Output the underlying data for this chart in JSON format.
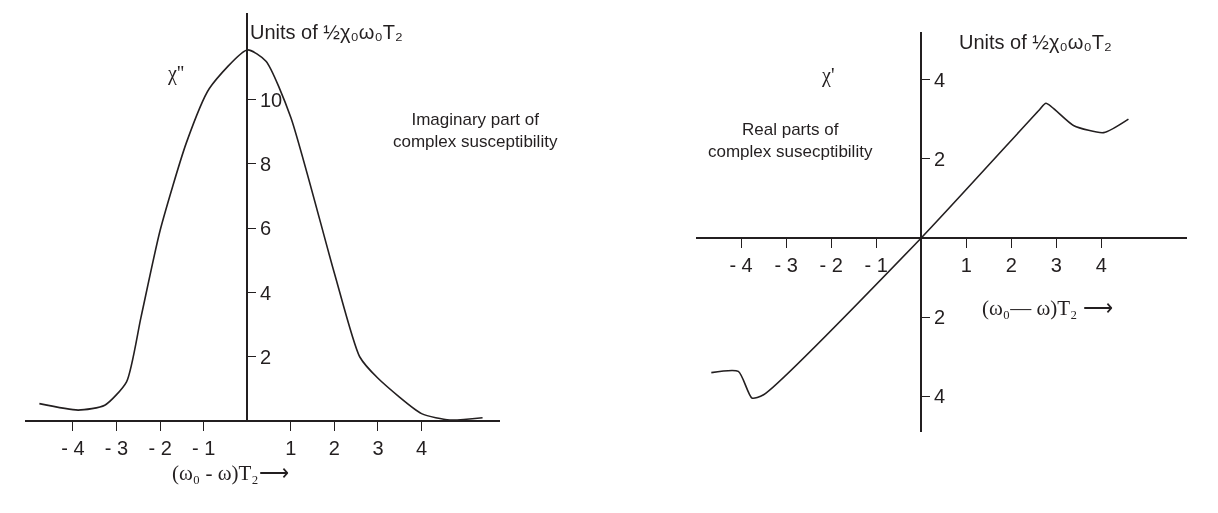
{
  "chart_data": [
    {
      "type": "line",
      "xlabel": "(ω₀ - ω)T₂⟶",
      "ylabel": "χ''",
      "annotations": [
        "Units of ½χ₀ω₀T₂",
        "Imaginary part of\ncomplex susceptibility"
      ],
      "series": [
        {
          "color": "#231f20",
          "x": [
            -4.77,
            -3.88,
            -3.27,
            -2.77,
            -2.44,
            -2.0,
            -1.4,
            -0.87,
            0.0,
            0.43,
            1.0,
            2.0,
            2.58,
            3.0,
            4.0,
            4.65,
            5.4
          ],
          "values": [
            0.54,
            0.34,
            0.49,
            1.22,
            3.22,
            5.93,
            8.65,
            10.35,
            11.55,
            11.2,
            9.45,
            4.6,
            2.0,
            1.33,
            0.23,
            0.03,
            0.1
          ]
        }
      ],
      "xlim": [
        -5.1,
        5.8
      ],
      "ylim": [
        0,
        12.7
      ],
      "xticks": [
        {
          "value": -4,
          "label": "- 4"
        },
        {
          "value": -3,
          "label": "- 3"
        },
        {
          "value": -2,
          "label": "- 2"
        },
        {
          "value": -1,
          "label": "- 1"
        },
        1,
        2,
        3,
        4
      ],
      "yticks": [
        2,
        4,
        6,
        8,
        10
      ]
    },
    {
      "type": "line",
      "xlabel": "(ω₀— ω)T₂ ⟶",
      "ylabel": "χ'",
      "annotations": [
        "Units of ½χ₀ω₀T₂",
        "Real parts of\ncomplex susecptibility"
      ],
      "series": [
        {
          "color": "#231f20",
          "x": [
            -4.66,
            -4.06,
            -3.76,
            -3.5,
            0,
            2.62,
            2.77,
            3.38,
            4.05,
            4.6
          ],
          "values": [
            -3.4,
            -3.37,
            -4.04,
            -3.96,
            0,
            3.23,
            3.4,
            2.84,
            2.66,
            3.0
          ]
        }
      ],
      "xlim": [
        -5.0,
        5.9
      ],
      "ylim": [
        -4.9,
        5.2
      ],
      "xticks": [
        {
          "value": -4,
          "label": "- 4"
        },
        {
          "value": -3,
          "label": "- 3"
        },
        {
          "value": -2,
          "label": "- 2"
        },
        {
          "value": -1,
          "label": "- 1"
        },
        1,
        2,
        3,
        4
      ],
      "yticks": [
        {
          "value": -4,
          "label": "4"
        },
        {
          "value": -2,
          "label": "2"
        },
        2,
        4
      ]
    }
  ]
}
